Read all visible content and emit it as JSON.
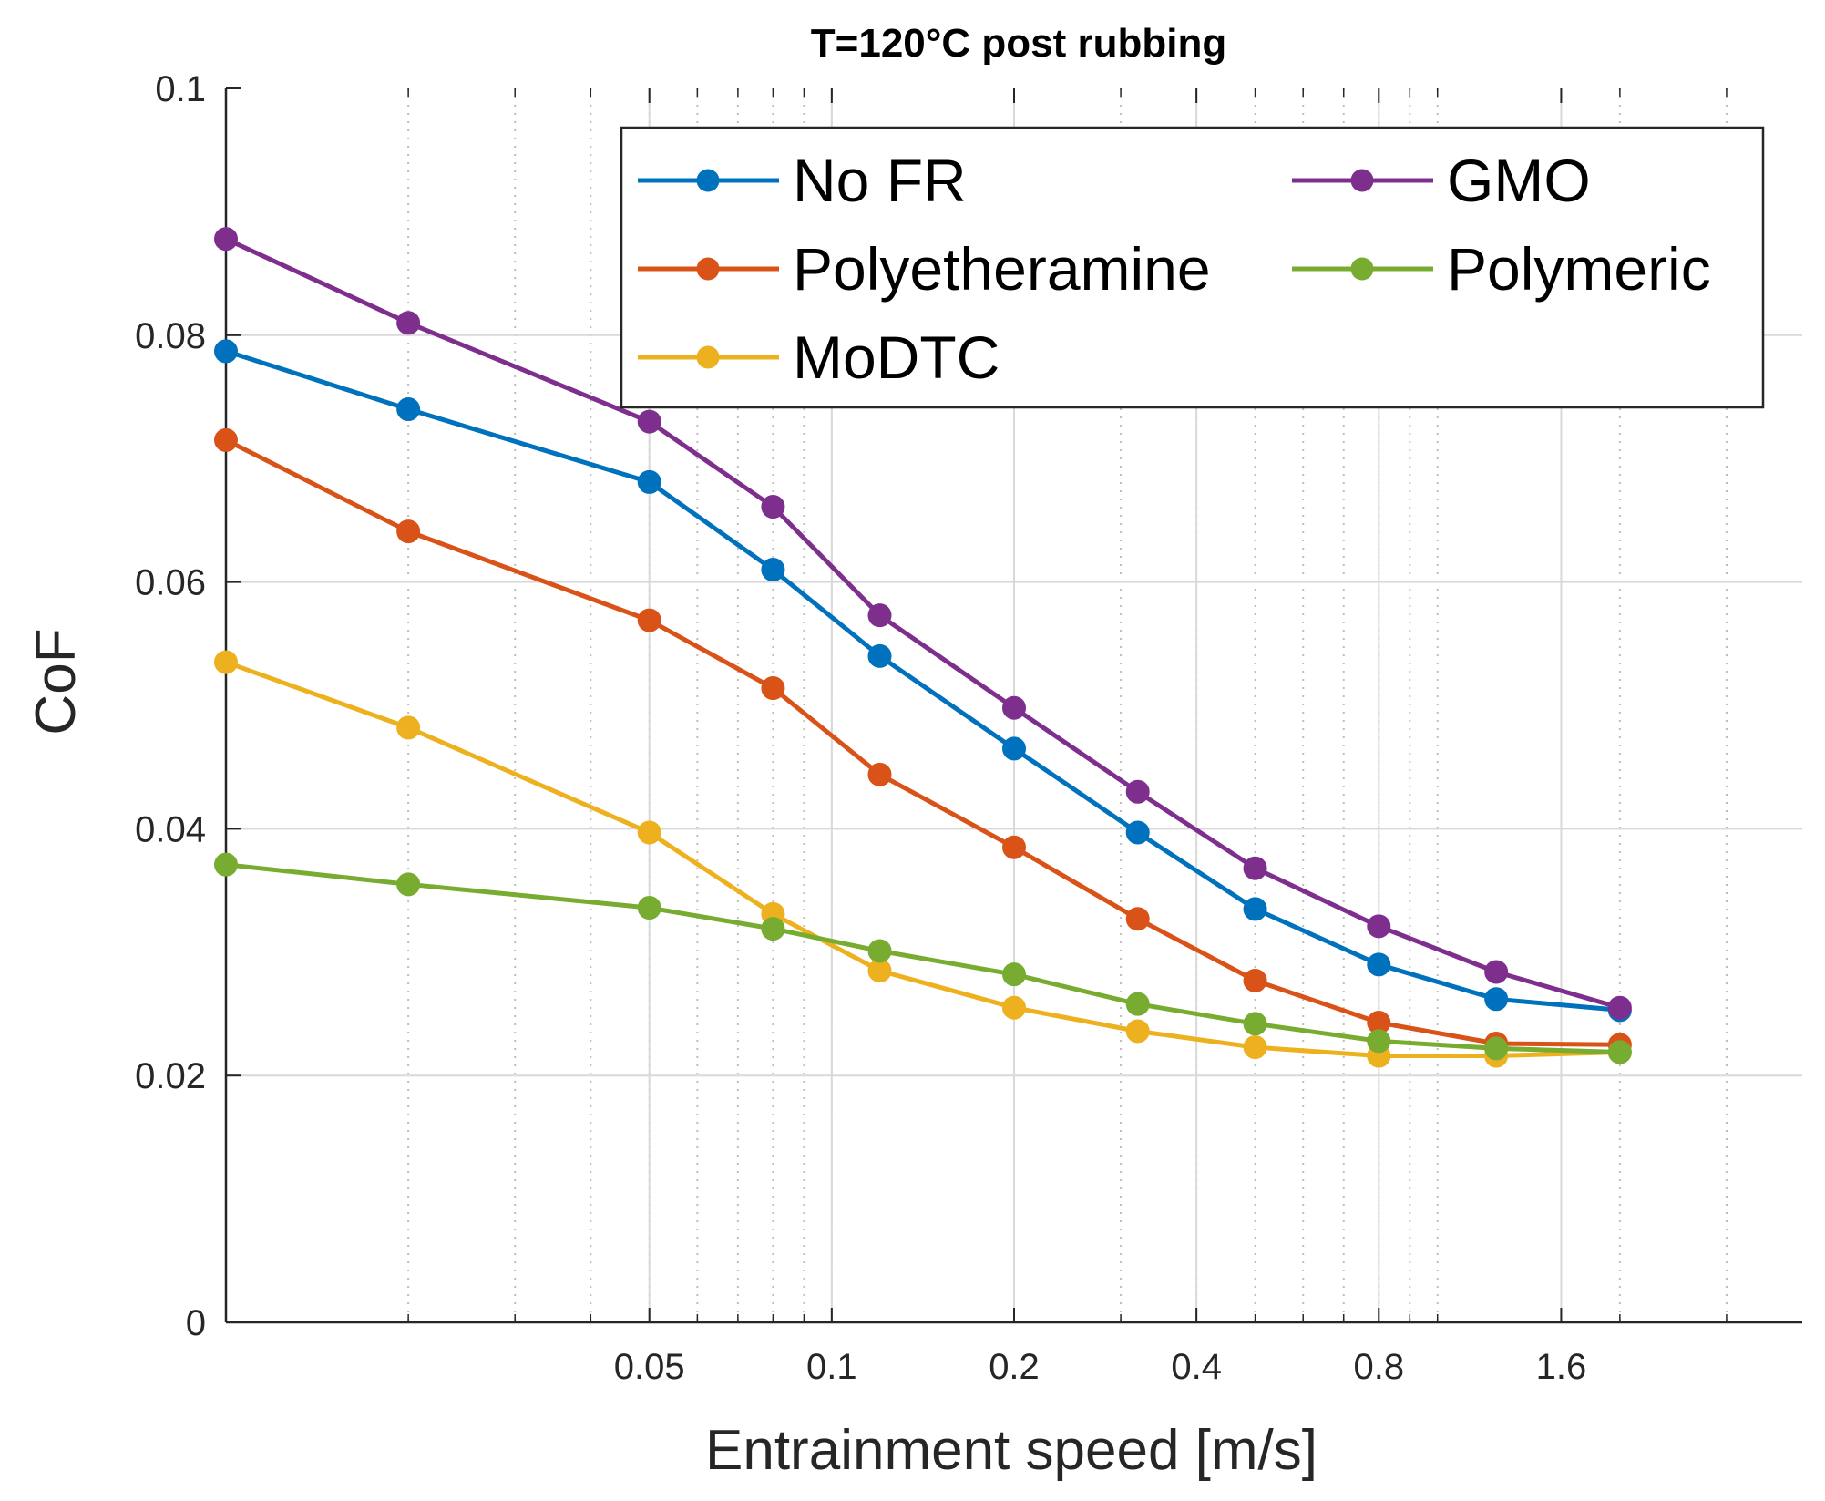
{
  "chart_data": {
    "type": "line",
    "title": "T=120°C post rubbing",
    "xlabel": "Entrainment speed [m/s]",
    "ylabel": "CoF",
    "xscale": "log",
    "xlim": [
      0.01,
      4
    ],
    "ylim": [
      0,
      0.1
    ],
    "grid": true,
    "x_ticks": [
      0.05,
      0.1,
      0.2,
      0.4,
      0.8,
      1.6
    ],
    "x_tick_labels": [
      "0.05",
      "0.1",
      "0.2",
      "0.4",
      "0.8",
      "1.6"
    ],
    "y_ticks": [
      0,
      0.02,
      0.04,
      0.06,
      0.08,
      0.1
    ],
    "y_tick_labels": [
      "0",
      "0.02",
      "0.04",
      "0.06",
      "0.08",
      "0.1"
    ],
    "x": [
      0.01,
      0.02,
      0.05,
      0.08,
      0.12,
      0.2,
      0.32,
      0.5,
      0.8,
      1.25,
      2.0
    ],
    "legend": {
      "location": "top-right",
      "columns": 2
    },
    "series": [
      {
        "name": "No FR",
        "color": "#0072BD",
        "values": [
          0.0787,
          0.074,
          0.0681,
          0.061,
          0.054,
          0.0465,
          0.0397,
          0.0335,
          0.029,
          0.0262,
          0.0253
        ]
      },
      {
        "name": "Polyetheramine",
        "color": "#D95319",
        "values": [
          0.0715,
          0.0641,
          0.0569,
          0.0514,
          0.0444,
          0.0385,
          0.0327,
          0.0277,
          0.0243,
          0.0226,
          0.0225
        ]
      },
      {
        "name": "MoDTC",
        "color": "#EDB120",
        "values": [
          0.0535,
          0.0482,
          0.0397,
          0.0331,
          0.0285,
          0.0255,
          0.0236,
          0.0223,
          0.0216,
          0.0216,
          0.0219
        ]
      },
      {
        "name": "GMO",
        "color": "#7E2F8E",
        "values": [
          0.0878,
          0.081,
          0.073,
          0.0661,
          0.0573,
          0.0498,
          0.043,
          0.0368,
          0.0321,
          0.0284,
          0.0255
        ]
      },
      {
        "name": "Polymeric",
        "color": "#77AC30",
        "values": [
          0.0371,
          0.0355,
          0.0336,
          0.0319,
          0.0301,
          0.0282,
          0.0258,
          0.0242,
          0.0228,
          0.0222,
          0.0219
        ]
      }
    ]
  }
}
